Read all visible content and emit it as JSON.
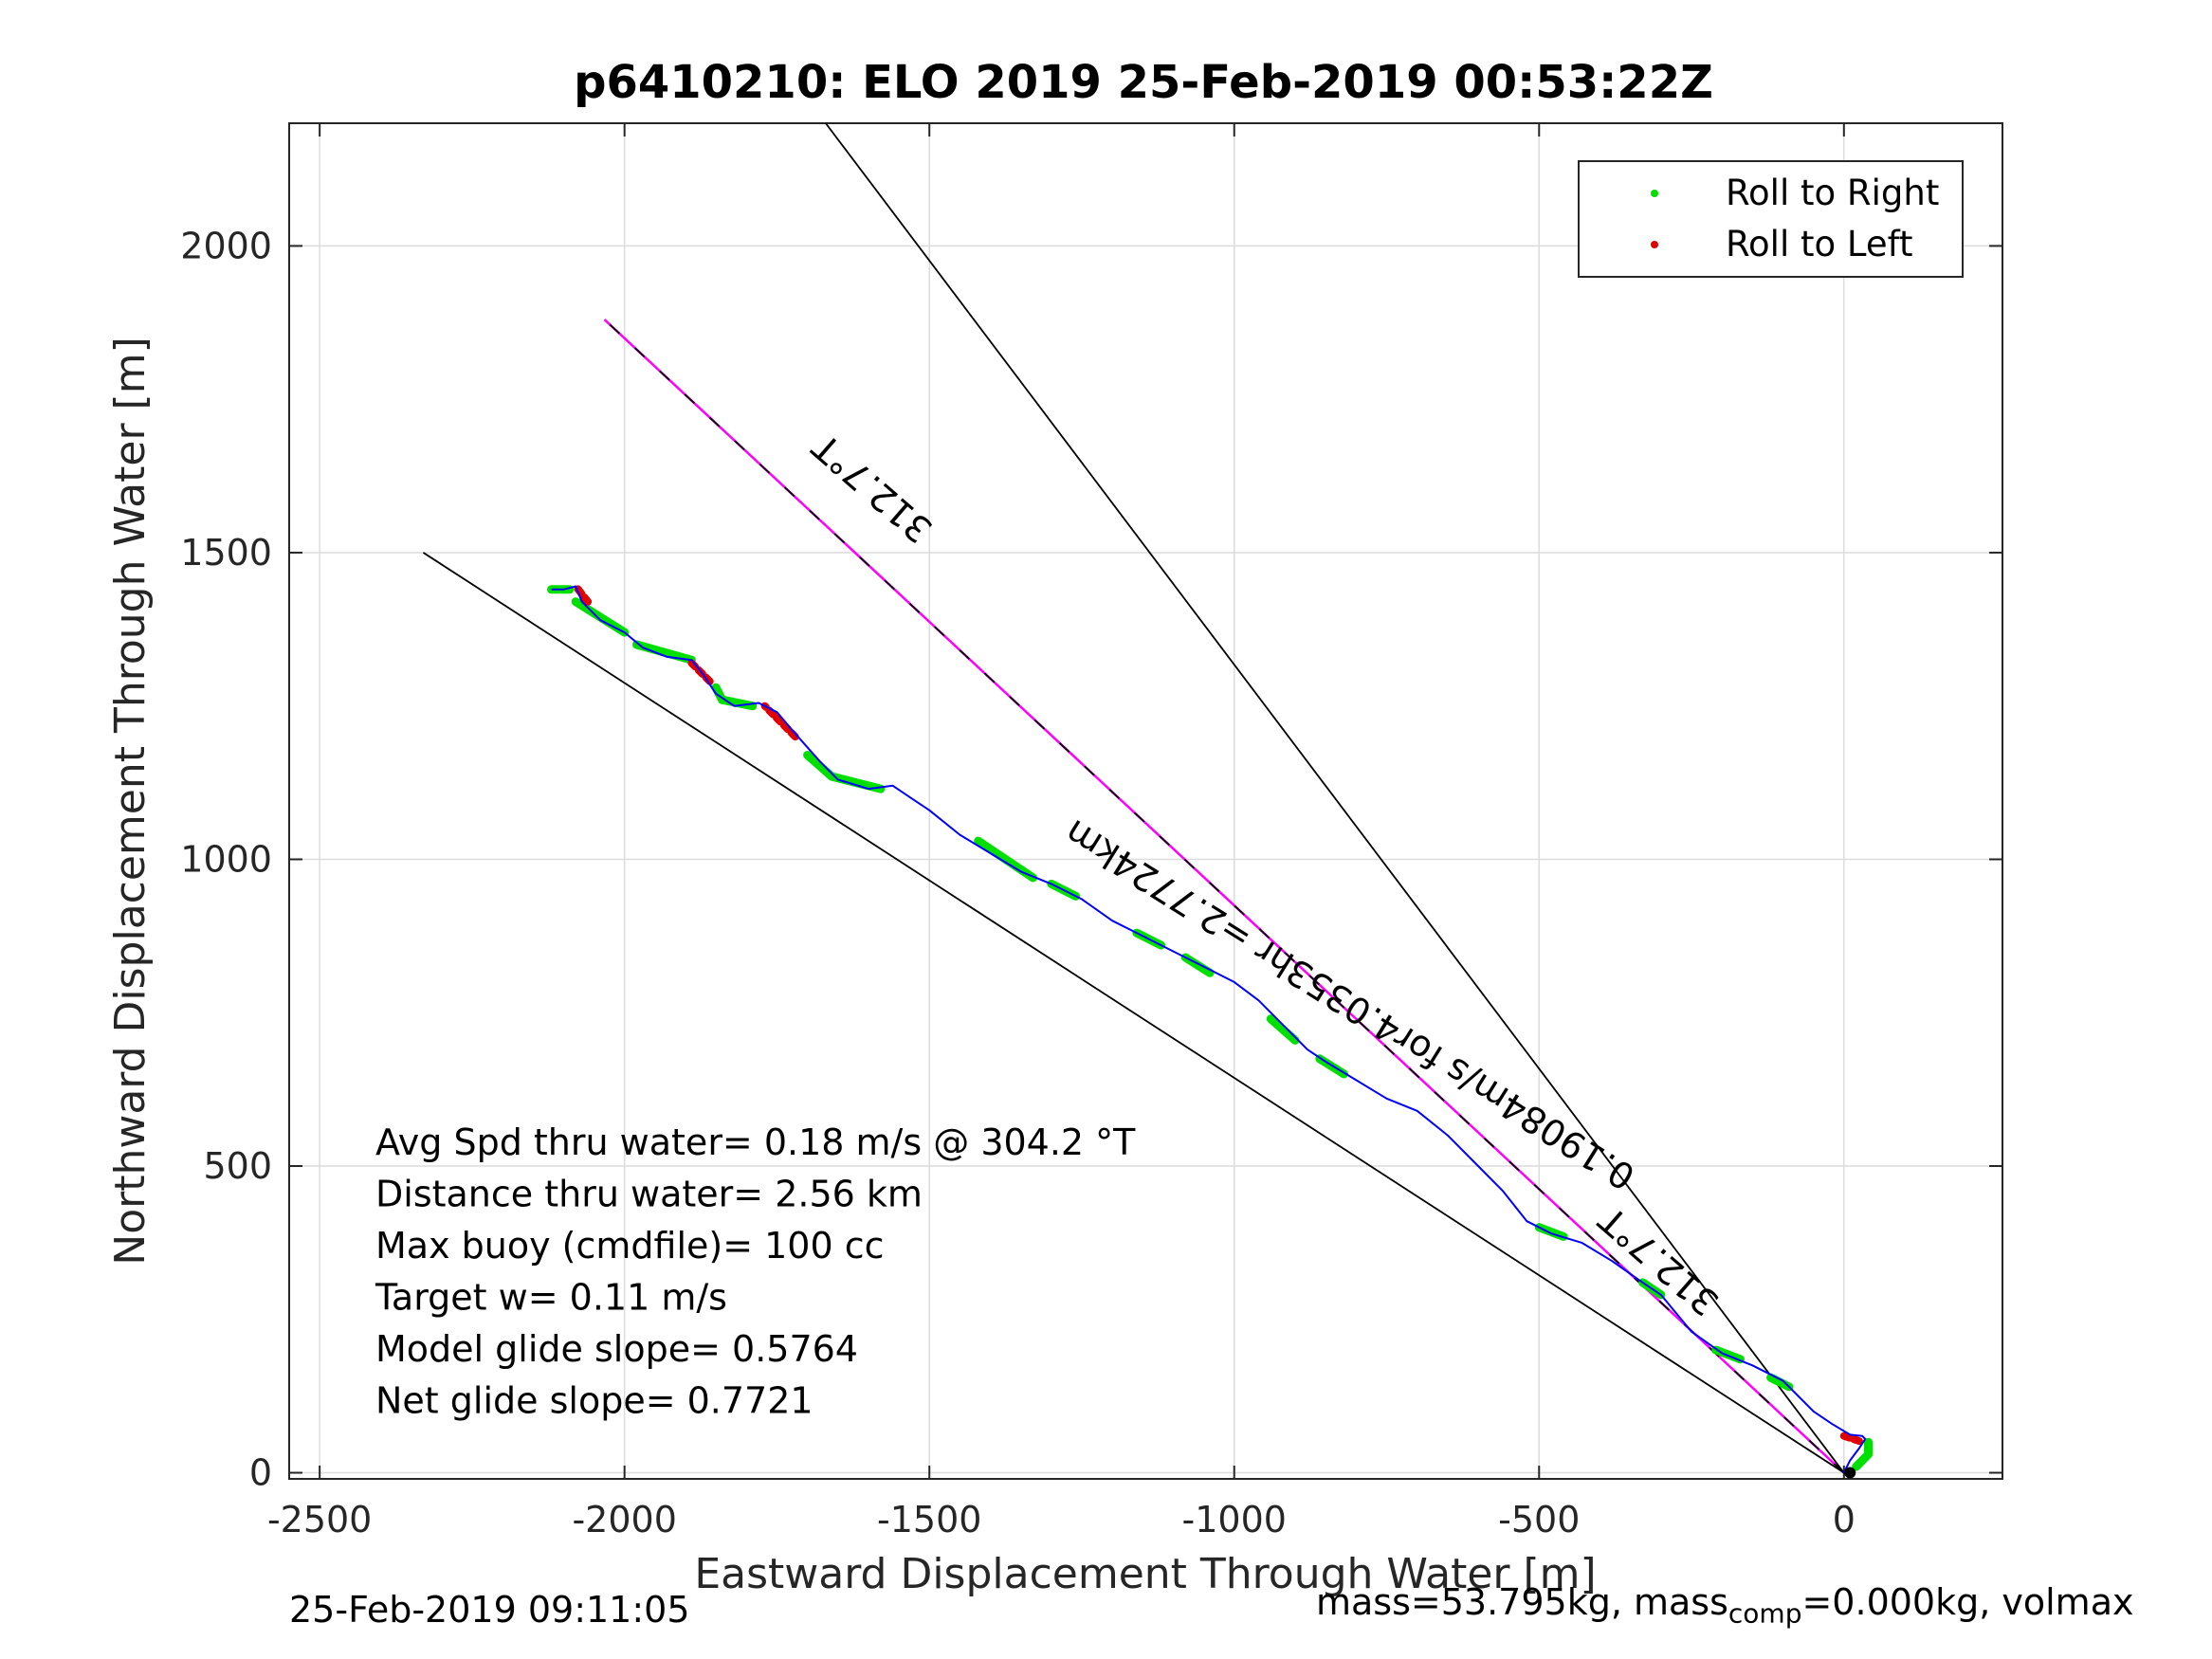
{
  "chart_data": {
    "type": "line",
    "title": "p6410210: ELO 2019 25-Feb-2019 00:53:22Z",
    "xlabel": "Eastward Displacement Through Water [m]",
    "ylabel": "Northward Displacement Through Water [m]",
    "xlim": [
      -2550,
      260
    ],
    "ylim": [
      -10,
      2200
    ],
    "xticks": [
      -2500,
      -2000,
      -1500,
      -1000,
      -500,
      0
    ],
    "yticks": [
      0,
      500,
      1000,
      1500,
      2000
    ],
    "grid": true,
    "legend": {
      "placement": "top-right",
      "entries": [
        {
          "label": "Roll to Right",
          "color": "#00e000"
        },
        {
          "label": "Roll to Left",
          "color": "#e00000"
        }
      ]
    },
    "track": {
      "color": "#0000ff",
      "points": [
        [
          0,
          0
        ],
        [
          10,
          20
        ],
        [
          25,
          40
        ],
        [
          35,
          55
        ],
        [
          30,
          60
        ],
        [
          10,
          62
        ],
        [
          -20,
          80
        ],
        [
          -50,
          100
        ],
        [
          -100,
          150
        ],
        [
          -150,
          175
        ],
        [
          -200,
          195
        ],
        [
          -250,
          230
        ],
        [
          -300,
          290
        ],
        [
          -330,
          310
        ],
        [
          -380,
          345
        ],
        [
          -430,
          375
        ],
        [
          -480,
          390
        ],
        [
          -520,
          410
        ],
        [
          -560,
          460
        ],
        [
          -600,
          500
        ],
        [
          -650,
          550
        ],
        [
          -700,
          590
        ],
        [
          -750,
          610
        ],
        [
          -800,
          640
        ],
        [
          -850,
          670
        ],
        [
          -880,
          690
        ],
        [
          -920,
          730
        ],
        [
          -960,
          770
        ],
        [
          -1000,
          800
        ],
        [
          -1040,
          820
        ],
        [
          -1080,
          840
        ],
        [
          -1120,
          860
        ],
        [
          -1160,
          880
        ],
        [
          -1200,
          900
        ],
        [
          -1250,
          935
        ],
        [
          -1300,
          960
        ],
        [
          -1350,
          980
        ],
        [
          -1400,
          1010
        ],
        [
          -1450,
          1040
        ],
        [
          -1500,
          1080
        ],
        [
          -1530,
          1100
        ],
        [
          -1560,
          1120
        ],
        [
          -1600,
          1115
        ],
        [
          -1650,
          1130
        ],
        [
          -1680,
          1160
        ],
        [
          -1720,
          1205
        ],
        [
          -1750,
          1240
        ],
        [
          -1780,
          1255
        ],
        [
          -1820,
          1250
        ],
        [
          -1850,
          1270
        ],
        [
          -1870,
          1300
        ],
        [
          -1890,
          1325
        ],
        [
          -1930,
          1330
        ],
        [
          -1970,
          1345
        ],
        [
          -2000,
          1370
        ],
        [
          -2040,
          1390
        ],
        [
          -2070,
          1420
        ],
        [
          -2080,
          1445
        ],
        [
          -2100,
          1440
        ],
        [
          -2120,
          1440
        ]
      ],
      "right_segments": [
        [
          [
            20,
            10
          ],
          [
            40,
            30
          ],
          [
            40,
            50
          ]
        ],
        [
          [
            -90,
            140
          ],
          [
            -120,
            155
          ]
        ],
        [
          [
            -170,
            185
          ],
          [
            -210,
            200
          ]
        ],
        [
          [
            -300,
            290
          ],
          [
            -330,
            310
          ]
        ],
        [
          [
            -460,
            385
          ],
          [
            -500,
            400
          ]
        ],
        [
          [
            -820,
            650
          ],
          [
            -860,
            675
          ]
        ],
        [
          [
            -900,
            705
          ],
          [
            -940,
            740
          ]
        ],
        [
          [
            -1040,
            815
          ],
          [
            -1080,
            840
          ]
        ],
        [
          [
            -1120,
            860
          ],
          [
            -1160,
            880
          ]
        ],
        [
          [
            -1260,
            940
          ],
          [
            -1300,
            960
          ]
        ],
        [
          [
            -1330,
            970
          ],
          [
            -1420,
            1030
          ]
        ],
        [
          [
            -1580,
            1115
          ],
          [
            -1660,
            1135
          ],
          [
            -1700,
            1170
          ]
        ],
        [
          [
            -1790,
            1250
          ],
          [
            -1840,
            1260
          ],
          [
            -1850,
            1280
          ]
        ],
        [
          [
            -1890,
            1325
          ],
          [
            -1980,
            1350
          ]
        ],
        [
          [
            -2000,
            1370
          ],
          [
            -2080,
            1420
          ]
        ],
        [
          [
            -2090,
            1440
          ],
          [
            -2120,
            1440
          ]
        ]
      ],
      "left_segments": [
        [
          [
            0,
            60
          ],
          [
            30,
            50
          ]
        ],
        [
          [
            -1720,
            1200
          ],
          [
            -1770,
            1250
          ]
        ],
        [
          [
            -1860,
            1290
          ],
          [
            -1890,
            1320
          ]
        ],
        [
          [
            -2060,
            1420
          ],
          [
            -2080,
            1445
          ]
        ]
      ]
    },
    "lines": [
      {
        "id": "heading-mid",
        "color": "#ff00ff",
        "from": [
          0,
          0
        ],
        "to": [
          -2033,
          1880
        ]
      },
      {
        "id": "wedge-left",
        "color": "#000000",
        "from": [
          0,
          0
        ],
        "to": [
          -2330,
          1500
        ]
      },
      {
        "id": "wedge-right",
        "color": "#000000",
        "from": [
          0,
          0
        ],
        "to": [
          -1670,
          2200
        ]
      },
      {
        "id": "heading-mid-black",
        "color": "#000000",
        "from": [
          0,
          0
        ],
        "to": [
          -2033,
          1880
        ]
      }
    ],
    "annotations": [
      {
        "text": "312.7°T",
        "x": -1580,
        "y": 1620,
        "angle": 221
      },
      {
        "text": "312.7°T",
        "x": -290,
        "y": 360,
        "angle": 221
      },
      {
        "text": "0.19084m/s for4.0353hr =2.7724km",
        "x": -800,
        "y": 780,
        "angle": 212
      }
    ],
    "info_lines": [
      "Avg Spd thru water=  0.18 m/s @ 304.2 °T",
      "Distance thru water=  2.56 km",
      "Max buoy (cmdfile)= 100 cc",
      "Target w= 0.11 m/s",
      "Model glide slope= 0.5764",
      "Net glide slope= 0.7721"
    ]
  },
  "footer": {
    "timestamp": "25-Feb-2019 09:11:05",
    "mass_prefix": "mass=53.795kg, mass",
    "mass_sub": "comp",
    "mass_suffix": "=0.000kg, volmax"
  }
}
